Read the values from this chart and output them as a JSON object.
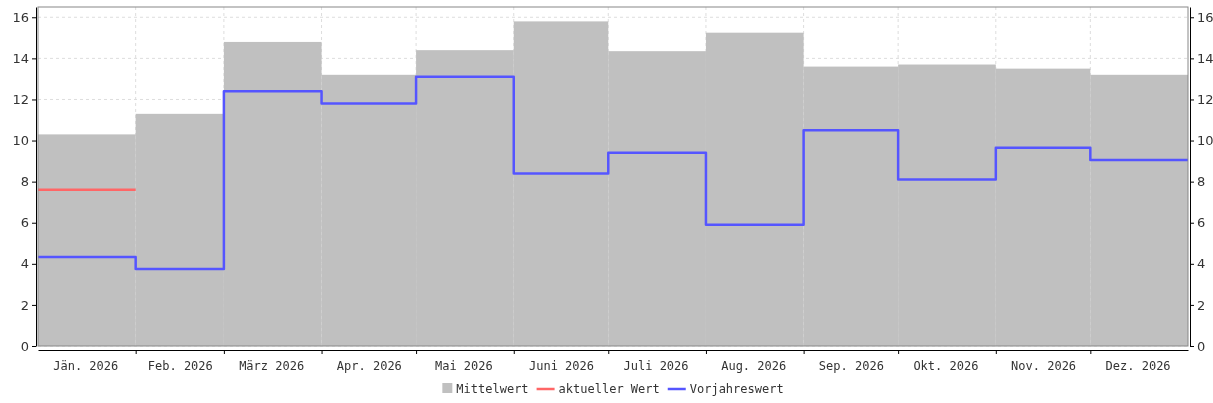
{
  "chart_data": {
    "type": "bar",
    "x": [
      "2026-01-16",
      "2026-02-15",
      "2026-03-16",
      "2026-04-16",
      "2026-05-16",
      "2026-06-16",
      "2026-07-16",
      "2026-08-16",
      "2026-09-16",
      "2026-10-16",
      "2026-11-16",
      "2026-12-16"
    ],
    "series": [
      {
        "name": "Mittelwert",
        "color": "#c0c0c0",
        "values": [
          10.3,
          11.3,
          14.8,
          13.2,
          14.4,
          15.8,
          14.35,
          15.25,
          13.6,
          13.7,
          13.5,
          13.2
        ]
      },
      {
        "name": "aktueller Wert",
        "type": "line",
        "color": "#ff6666",
        "x": [
          "2026-01-01",
          "2026-02-01"
        ],
        "values": [
          7.6,
          7.6
        ]
      },
      {
        "name": "Vorjahreswert",
        "type": "line",
        "color": "#5555ff",
        "x": [
          "2026-01-01",
          "2026-02-01",
          "2026-02-01",
          "2026-03-01",
          "2026-03-01",
          "2026-04-01",
          "2026-04-01",
          "2026-05-01",
          "2026-05-01",
          "2026-06-01",
          "2026-06-01",
          "2026-07-01",
          "2026-07-01",
          "2026-08-01",
          "2026-08-01",
          "2026-09-01",
          "2026-09-01",
          "2026-10-01",
          "2026-10-01",
          "2026-11-01",
          "2026-11-01",
          "2026-12-01",
          "2026-12-01",
          "2027-01-01"
        ],
        "values": [
          4.33,
          4.33,
          3.75,
          3.75,
          12.4,
          12.4,
          11.8,
          11.8,
          13.1,
          13.1,
          8.4,
          8.4,
          9.4,
          9.4,
          5.9,
          5.9,
          10.5,
          10.5,
          8.1,
          8.1,
          9.65,
          9.65,
          9.05,
          9.05
        ]
      }
    ],
    "xlim": [
      "2026-01-01",
      "2027-01-01"
    ],
    "xticks": [
      {
        "value": "2026-01-16",
        "label": "Jän. 2026"
      },
      {
        "value": "2026-02-01",
        "label": null
      },
      {
        "value": "2026-02-15",
        "label": "Feb. 2026"
      },
      {
        "value": "2026-03-01",
        "label": null
      },
      {
        "value": "2026-03-16",
        "label": "März 2026"
      },
      {
        "value": "2026-04-01",
        "label": null
      },
      {
        "value": "2026-04-16",
        "label": "Apr. 2026"
      },
      {
        "value": "2026-05-01",
        "label": null
      },
      {
        "value": "2026-05-16",
        "label": "Mai 2026"
      },
      {
        "value": "2026-06-01",
        "label": null
      },
      {
        "value": "2026-06-16",
        "label": "Juni 2026"
      },
      {
        "value": "2026-07-01",
        "label": null
      },
      {
        "value": "2026-07-16",
        "label": "Juli 2026"
      },
      {
        "value": "2026-08-01",
        "label": null
      },
      {
        "value": "2026-08-16",
        "label": "Aug. 2026"
      },
      {
        "value": "2026-09-01",
        "label": null
      },
      {
        "value": "2026-09-16",
        "label": "Sep. 2026"
      },
      {
        "value": "2026-10-01",
        "label": null
      },
      {
        "value": "2026-10-16",
        "label": "Okt. 2026"
      },
      {
        "value": "2026-11-01",
        "label": null
      },
      {
        "value": "2026-11-16",
        "label": "Nov. 2026"
      },
      {
        "value": "2026-12-01",
        "label": null
      },
      {
        "value": "2026-12-16",
        "label": "Dez. 2026"
      }
    ],
    "ylim": [
      0,
      16.5
    ],
    "yticks": [
      0,
      2,
      4,
      6,
      8,
      10,
      12,
      14,
      16
    ],
    "y2lim": [
      0,
      16.5
    ],
    "y2ticks": [
      0,
      2,
      4,
      6,
      8,
      10,
      12,
      14,
      16
    ],
    "grid": true,
    "legend": "bottom"
  }
}
